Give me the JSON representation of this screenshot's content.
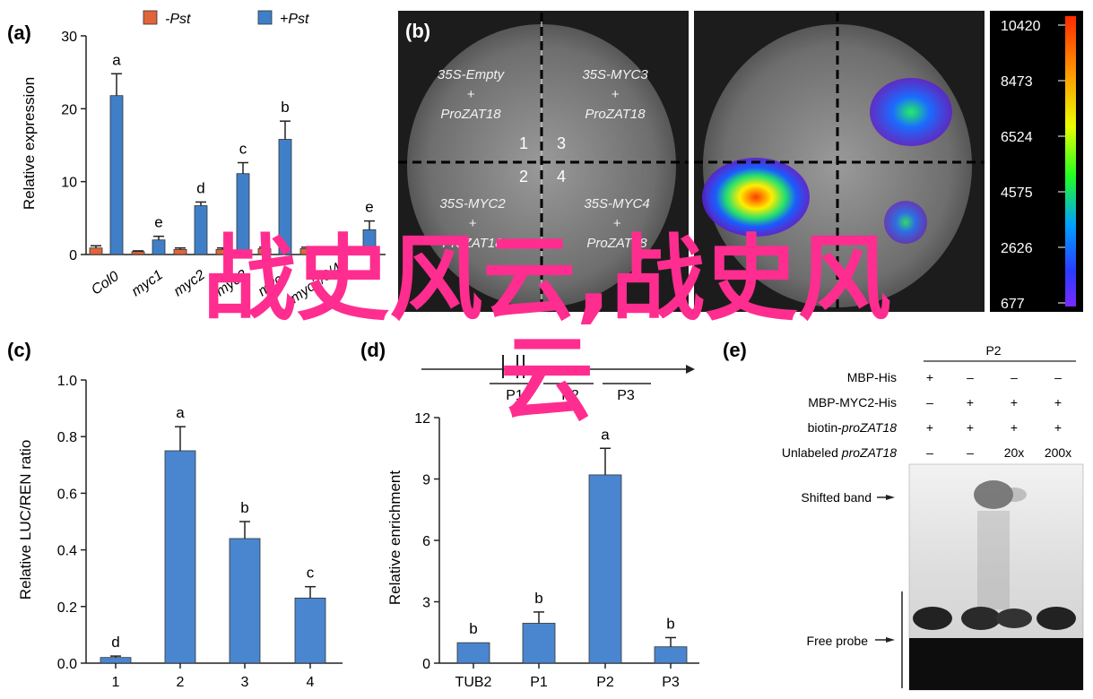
{
  "panels": {
    "a": "(a)",
    "b": "(b)",
    "c": "(c)",
    "d": "(d)",
    "e": "(e)"
  },
  "chart_data": [
    {
      "id": "a",
      "type": "bar",
      "ylabel": "Relative expression",
      "ylim": [
        0,
        30
      ],
      "yticks": [
        0,
        10,
        20,
        30
      ],
      "categories": [
        "Col-0",
        "myc1",
        "myc2",
        "myc3",
        "myc4",
        "myc2/3/4",
        "myc5"
      ],
      "category_labels": [
        "Col0",
        "myc1",
        "myc2",
        "myc3",
        "myc4",
        "myc2/3/4",
        ""
      ],
      "series": [
        {
          "name": "-Pst",
          "values": [
            0.9,
            0.4,
            0.7,
            0.7,
            0.8,
            0.8,
            0.8
          ],
          "errors": [
            0.3,
            0.1,
            0.2,
            0.2,
            0.2,
            0.2,
            0.2
          ]
        },
        {
          "name": "+Pst",
          "values": [
            21.8,
            2.0,
            6.7,
            11.1,
            15.8,
            0.0,
            3.4
          ],
          "errors": [
            3.0,
            0.5,
            0.5,
            1.5,
            2.5,
            0,
            1.2
          ]
        }
      ],
      "letters": [
        "a",
        "e",
        "d",
        "c",
        "b",
        "",
        "e"
      ],
      "colors": {
        "-Pst": "#e0653a",
        "+Pst": "#3f7fc8"
      }
    },
    {
      "id": "c",
      "type": "bar",
      "ylabel": "Relative LUC/REN ratio",
      "ylim": [
        0,
        1.0
      ],
      "yticks": [
        "0.0",
        "0.2",
        "0.4",
        "0.6",
        "0.8",
        "1.0"
      ],
      "categories": [
        "1",
        "2",
        "3",
        "4"
      ],
      "values": [
        0.02,
        0.75,
        0.44,
        0.23
      ],
      "errors": [
        0.005,
        0.085,
        0.06,
        0.04
      ],
      "letters": [
        "d",
        "a",
        "b",
        "c"
      ]
    },
    {
      "id": "d",
      "type": "bar",
      "ylabel": "Relative enrichment",
      "ylim": [
        0,
        12
      ],
      "yticks": [
        "0",
        "3",
        "6",
        "9",
        "12"
      ],
      "categories": [
        "TUB2",
        "P1",
        "P2",
        "P3"
      ],
      "values": [
        1.0,
        1.95,
        9.2,
        0.8
      ],
      "errors": [
        0,
        0.55,
        1.3,
        0.45
      ],
      "letters": [
        "b",
        "b",
        "a",
        "b"
      ]
    }
  ],
  "luciferase": {
    "quadrants": [
      {
        "line1": "35S-Empty",
        "line2": "+",
        "line3": "ProZAT18"
      },
      {
        "line1": "35S-MYC3",
        "line2": "+",
        "line3": "ProZAT18"
      },
      {
        "line1": "35S-MYC2",
        "line2": "+",
        "line3": "ProZAT18"
      },
      {
        "line1": "35S-MYC4",
        "line2": "+",
        "line3": "ProZAT18"
      }
    ],
    "numbers": [
      "1",
      "3",
      "2",
      "4"
    ],
    "scale": [
      "10420",
      "8473",
      "6524",
      "4575",
      "2626",
      "677"
    ]
  },
  "promoter": {
    "labels": [
      "P1",
      "P2",
      "P3"
    ]
  },
  "emsa": {
    "probe_group": "P2",
    "rows": [
      {
        "label": "MBP-His",
        "values": [
          "+",
          "–",
          "–",
          "–"
        ]
      },
      {
        "label": "MBP-MYC2-His",
        "values": [
          "–",
          "+",
          "+",
          "+"
        ]
      },
      {
        "label": "biotin-proZAT18",
        "values": [
          "+",
          "+",
          "+",
          "+"
        ]
      },
      {
        "label": "Unlabeled proZAT18",
        "values": [
          "–",
          "–",
          "20x",
          "200x"
        ]
      }
    ],
    "shifted_label": "Shifted band",
    "free_label": "Free probe"
  },
  "overlay": {
    "line1": "战史风云,战史风",
    "line2": "云",
    "color": "#ff2d8f"
  }
}
